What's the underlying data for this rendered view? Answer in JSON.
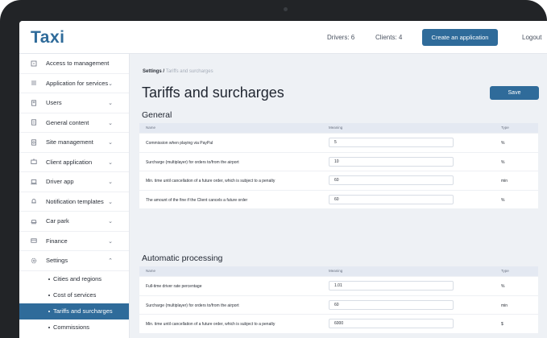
{
  "header": {
    "logo": "Taxi",
    "drivers": "Drivers: 6",
    "clients": "Clients: 4",
    "create_button": "Create an application",
    "logout": "Logout"
  },
  "sidebar": {
    "items": [
      {
        "label": "Access to management",
        "icon": "lock-icon",
        "chevron": ""
      },
      {
        "label": "Application for services",
        "icon": "list-icon",
        "chevron": "⌄"
      },
      {
        "label": "Users",
        "icon": "users-icon",
        "chevron": "⌄"
      },
      {
        "label": "General content",
        "icon": "document-icon",
        "chevron": "⌄"
      },
      {
        "label": "Site management",
        "icon": "site-icon",
        "chevron": "⌄"
      },
      {
        "label": "Client application",
        "icon": "app-icon",
        "chevron": "⌄"
      },
      {
        "label": "Driver app",
        "icon": "laptop-icon",
        "chevron": "⌄"
      },
      {
        "label": "Notification templates",
        "icon": "bell-icon",
        "chevron": "⌄"
      },
      {
        "label": "Car park",
        "icon": "car-icon",
        "chevron": "⌄"
      },
      {
        "label": "Finance",
        "icon": "card-icon",
        "chevron": "⌄"
      },
      {
        "label": "Settings",
        "icon": "gear-icon",
        "chevron": "⌃"
      }
    ],
    "sub_items": [
      {
        "label": "Cities and regions"
      },
      {
        "label": "Cost of services"
      },
      {
        "label": "Tariffs and surcharges"
      },
      {
        "label": "Commissions"
      }
    ],
    "active_sub": "Tariffs and surcharges"
  },
  "main": {
    "breadcrumb_root": "Settings /",
    "breadcrumb_current": "Tariffs and surcharges",
    "title": "Tariffs and surcharges",
    "save_label": "Save",
    "columns": {
      "name": "Name",
      "meaning": "Meaning",
      "type": "Type"
    },
    "general": {
      "title": "General",
      "rows": [
        {
          "name": "Commission when playing via PayPal",
          "value": "5",
          "type": "%"
        },
        {
          "name": "Surcharge (multiplayer) for orders to/from the airport",
          "value": "10",
          "type": "%"
        },
        {
          "name": "Min. time until cancellation of a future order, which is subject to a penalty",
          "value": "60",
          "type": "min"
        },
        {
          "name": "The amount of the fine if the Client cancels a future order",
          "value": "60",
          "type": "%"
        }
      ]
    },
    "automatic": {
      "title": "Automatic processing",
      "rows": [
        {
          "name": "Full-time driver rate percentage",
          "value": "1.01",
          "type": "%"
        },
        {
          "name": "Surcharge (multiplayer) for orders to/from the airport",
          "value": "60",
          "type": "min"
        },
        {
          "name": "Min. time until cancellation of a future order, which is subject to a penalty",
          "value": "6000",
          "type": "$"
        }
      ]
    }
  },
  "colors": {
    "accent": "#2f6b9a",
    "bezel": "#222427",
    "background": "#eef1f5"
  }
}
